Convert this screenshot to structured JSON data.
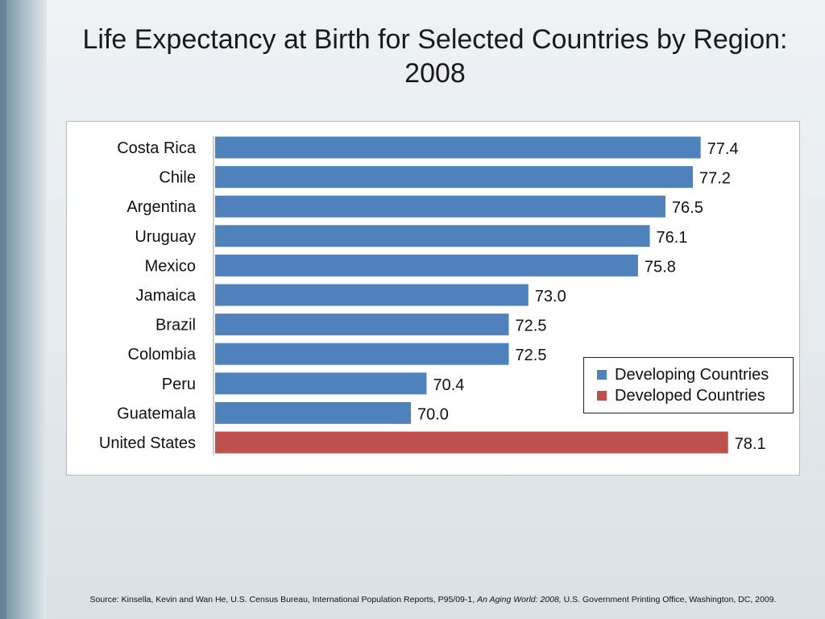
{
  "slide": {
    "title": "Life Expectancy at Birth for Selected Countries by Region: 2008",
    "source_prefix": "Source: Kinsella, Kevin and Wan He, U.S. Census Bureau, International Population Reports, P95/09-1, ",
    "source_italic": "An Aging World: 2008,",
    "source_suffix": " U.S. Government Printing Office, Washington, DC, 2009."
  },
  "chart_data": {
    "type": "bar",
    "orientation": "horizontal",
    "title": "Life Expectancy at Birth for Selected Countries by Region: 2008",
    "categories": [
      "Costa Rica",
      "Chile",
      "Argentina",
      "Uruguay",
      "Mexico",
      "Jamaica",
      "Brazil",
      "Colombia",
      "Peru",
      "Guatemala",
      "United States"
    ],
    "values": [
      77.4,
      77.2,
      76.5,
      76.1,
      75.8,
      73.0,
      72.5,
      72.5,
      70.4,
      70.0,
      78.1
    ],
    "value_labels": [
      "77.4",
      "77.2",
      "76.5",
      "76.1",
      "75.8",
      "73.0",
      "72.5",
      "72.5",
      "70.4",
      "70.0",
      "78.1"
    ],
    "groups": [
      "developing",
      "developing",
      "developing",
      "developing",
      "developing",
      "developing",
      "developing",
      "developing",
      "developing",
      "developing",
      "developed"
    ],
    "xlim": [
      65,
      78.6
    ],
    "grid": false,
    "legend": {
      "placement": "bottom-right",
      "entries": [
        {
          "key": "developing",
          "label": "Developing Countries",
          "color": "#4f81bd"
        },
        {
          "key": "developed",
          "label": "Developed Countries",
          "color": "#c0504d"
        }
      ]
    }
  }
}
